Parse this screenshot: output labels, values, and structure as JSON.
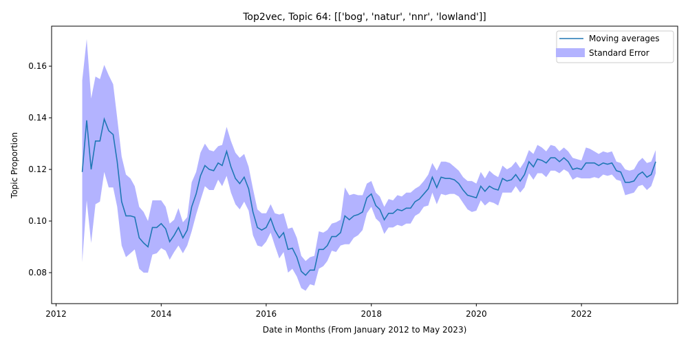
{
  "chart_data": {
    "type": "line",
    "title": "Top2vec, Topic 64: [['bog', 'natur', 'nnr', 'lowland']]",
    "xlabel": "Date in Months (From January 2012 to May 2023)",
    "ylabel": "Topic Proportion",
    "xlim": [
      "2011-12-01",
      "2023-11-01"
    ],
    "ylim": [
      0.068,
      0.1755
    ],
    "x_ticks": [
      {
        "date": "2012-01-01",
        "label": "2012"
      },
      {
        "date": "2014-01-01",
        "label": "2014"
      },
      {
        "date": "2016-01-01",
        "label": "2016"
      },
      {
        "date": "2018-01-01",
        "label": "2018"
      },
      {
        "date": "2020-01-01",
        "label": "2020"
      },
      {
        "date": "2022-01-01",
        "label": "2022"
      }
    ],
    "y_ticks": [
      {
        "value": 0.08,
        "label": "0.08"
      },
      {
        "value": 0.1,
        "label": "0.10"
      },
      {
        "value": 0.12,
        "label": "0.12"
      },
      {
        "value": 0.14,
        "label": "0.14"
      },
      {
        "value": 0.16,
        "label": "0.16"
      }
    ],
    "grid": false,
    "legend_position": "top-right",
    "legend": [
      {
        "label": "Moving averages",
        "kind": "line",
        "color": "#1f77b4"
      },
      {
        "label": "Standard Error",
        "kind": "band",
        "color": "#b3b3ff"
      }
    ],
    "line_color": "#1f77b4",
    "band_color": "#b3b3ff",
    "x_start": "2012-07-01",
    "moving_average": [
      0.119,
      0.139,
      0.12,
      0.131,
      0.131,
      0.1395,
      0.135,
      0.1335,
      0.123,
      0.1075,
      0.102,
      0.102,
      0.1015,
      0.0935,
      0.0915,
      0.09,
      0.0975,
      0.0975,
      0.099,
      0.097,
      0.092,
      0.0945,
      0.0975,
      0.0935,
      0.0965,
      0.1055,
      0.1105,
      0.1175,
      0.1215,
      0.12,
      0.1195,
      0.1225,
      0.1215,
      0.127,
      0.121,
      0.1165,
      0.1145,
      0.117,
      0.1125,
      0.1035,
      0.0975,
      0.0965,
      0.0975,
      0.101,
      0.0965,
      0.0935,
      0.0955,
      0.089,
      0.0895,
      0.086,
      0.0805,
      0.079,
      0.081,
      0.081,
      0.089,
      0.089,
      0.0905,
      0.094,
      0.094,
      0.0955,
      0.102,
      0.1005,
      0.102,
      0.1025,
      0.1035,
      0.109,
      0.1105,
      0.106,
      0.1045,
      0.1005,
      0.103,
      0.103,
      0.1045,
      0.104,
      0.105,
      0.105,
      0.1075,
      0.1085,
      0.1105,
      0.1125,
      0.117,
      0.113,
      0.117,
      0.1165,
      0.1165,
      0.116,
      0.1145,
      0.112,
      0.11,
      0.1095,
      0.109,
      0.1135,
      0.1115,
      0.1135,
      0.1125,
      0.112,
      0.1165,
      0.1155,
      0.116,
      0.118,
      0.1155,
      0.118,
      0.123,
      0.121,
      0.124,
      0.1235,
      0.1225,
      0.1245,
      0.1245,
      0.123,
      0.1245,
      0.123,
      0.12,
      0.1205,
      0.12,
      0.1225,
      0.1225,
      0.1225,
      0.1215,
      0.1225,
      0.122,
      0.1225,
      0.1195,
      0.119,
      0.115,
      0.115,
      0.1155,
      0.118,
      0.119,
      0.117,
      0.118,
      0.123
    ],
    "upper": [
      0.1545,
      0.1705,
      0.1475,
      0.156,
      0.155,
      0.1605,
      0.1565,
      0.153,
      0.14,
      0.125,
      0.118,
      0.1165,
      0.1135,
      0.1055,
      0.1035,
      0.1,
      0.108,
      0.108,
      0.108,
      0.1055,
      0.099,
      0.1005,
      0.105,
      0.0995,
      0.1015,
      0.115,
      0.119,
      0.1265,
      0.13,
      0.1275,
      0.127,
      0.129,
      0.1295,
      0.1365,
      0.131,
      0.1265,
      0.1245,
      0.126,
      0.121,
      0.1125,
      0.1045,
      0.103,
      0.103,
      0.1065,
      0.103,
      0.1025,
      0.103,
      0.097,
      0.0975,
      0.0935,
      0.0865,
      0.0845,
      0.086,
      0.0865,
      0.096,
      0.0955,
      0.0965,
      0.099,
      0.0995,
      0.1005,
      0.113,
      0.11,
      0.1105,
      0.11,
      0.11,
      0.1145,
      0.1155,
      0.111,
      0.1095,
      0.1055,
      0.1085,
      0.108,
      0.11,
      0.1095,
      0.111,
      0.111,
      0.1125,
      0.1135,
      0.1155,
      0.118,
      0.1225,
      0.1195,
      0.123,
      0.123,
      0.1225,
      0.121,
      0.1195,
      0.117,
      0.1155,
      0.1155,
      0.1145,
      0.119,
      0.1165,
      0.1195,
      0.118,
      0.117,
      0.1215,
      0.12,
      0.121,
      0.123,
      0.1205,
      0.123,
      0.1275,
      0.126,
      0.1295,
      0.1285,
      0.127,
      0.1295,
      0.129,
      0.127,
      0.1285,
      0.127,
      0.1245,
      0.124,
      0.1235,
      0.1285,
      0.128,
      0.127,
      0.126,
      0.127,
      0.1265,
      0.127,
      0.123,
      0.1225,
      0.12,
      0.1195,
      0.12,
      0.123,
      0.1245,
      0.1225,
      0.123,
      0.1275
    ],
    "lower": [
      0.084,
      0.108,
      0.0915,
      0.1065,
      0.1075,
      0.119,
      0.113,
      0.113,
      0.1055,
      0.0905,
      0.086,
      0.0875,
      0.089,
      0.0815,
      0.08,
      0.08,
      0.087,
      0.0875,
      0.0895,
      0.0885,
      0.085,
      0.088,
      0.0905,
      0.0875,
      0.0905,
      0.096,
      0.1025,
      0.108,
      0.1135,
      0.112,
      0.112,
      0.116,
      0.1135,
      0.1175,
      0.111,
      0.1065,
      0.1045,
      0.1075,
      0.104,
      0.0945,
      0.0905,
      0.09,
      0.092,
      0.0955,
      0.0905,
      0.0855,
      0.088,
      0.08,
      0.0815,
      0.0785,
      0.074,
      0.073,
      0.0755,
      0.075,
      0.0815,
      0.0825,
      0.0845,
      0.0885,
      0.088,
      0.0905,
      0.091,
      0.091,
      0.0935,
      0.0945,
      0.0965,
      0.103,
      0.1055,
      0.101,
      0.0995,
      0.095,
      0.0975,
      0.0975,
      0.0985,
      0.098,
      0.099,
      0.099,
      0.102,
      0.103,
      0.1055,
      0.106,
      0.111,
      0.1065,
      0.1105,
      0.11,
      0.1105,
      0.1105,
      0.1095,
      0.107,
      0.1045,
      0.1035,
      0.104,
      0.108,
      0.106,
      0.1075,
      0.107,
      0.106,
      0.111,
      0.111,
      0.111,
      0.1135,
      0.111,
      0.113,
      0.1185,
      0.116,
      0.1185,
      0.1185,
      0.117,
      0.1195,
      0.1195,
      0.1185,
      0.12,
      0.119,
      0.116,
      0.117,
      0.1165,
      0.1165,
      0.1165,
      0.117,
      0.1165,
      0.118,
      0.1175,
      0.118,
      0.116,
      0.1155,
      0.11,
      0.1105,
      0.111,
      0.1135,
      0.114,
      0.112,
      0.1135,
      0.1185
    ]
  }
}
